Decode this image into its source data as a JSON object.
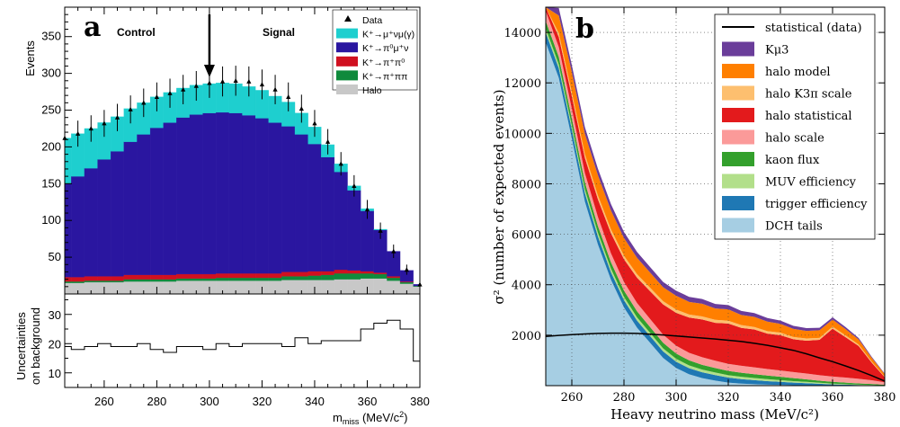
{
  "left": {
    "panel_label": "a",
    "top_ylabel": "Events",
    "bottom_ylabel_line1": "Uncertainties",
    "bottom_ylabel_line2": "on background",
    "xlabel": "m",
    "xlabel_sub": "miss",
    "xlabel_unit": " (MeV/c",
    "xlabel_sup": "2",
    "xlabel_close": ")",
    "region_control": "Control",
    "region_signal": "Signal",
    "arrow_at": 300,
    "legend": [
      {
        "id": "data",
        "label": "Data",
        "color": "#000000"
      },
      {
        "id": "kmu2",
        "label": "K⁺→μ⁺νμ(γ)",
        "color": "#1ecfcf"
      },
      {
        "id": "kmu3",
        "label": "K⁺→π⁰μ⁺ν",
        "color": "#2a16a0"
      },
      {
        "id": "k2pi",
        "label": "K⁺→π⁺π⁰",
        "color": "#d01020"
      },
      {
        "id": "k3pi",
        "label": "K⁺→π⁺ππ",
        "color": "#0f8a3c"
      },
      {
        "id": "halo",
        "label": "Halo",
        "color": "#c8c8c8"
      }
    ]
  },
  "right": {
    "panel_label": "b",
    "xlabel": "Heavy neutrino mass (MeV/c²)",
    "ylabel": "σ² (number of expected events)",
    "legend": [
      {
        "id": "stat",
        "label": "statistical (data)",
        "color": "#000000",
        "kind": "line"
      },
      {
        "id": "kmu3",
        "label": "Kμ3",
        "color": "#6a3d9a"
      },
      {
        "id": "halo_model",
        "label": "halo model",
        "color": "#ff7f00"
      },
      {
        "id": "halo_k3pi",
        "label": "halo K3π scale",
        "color": "#fdbf6f"
      },
      {
        "id": "halo_stat",
        "label": "halo statistical",
        "color": "#e31a1c"
      },
      {
        "id": "halo_scale",
        "label": "halo scale",
        "color": "#fb9a99"
      },
      {
        "id": "kaon_flux",
        "label": "kaon flux",
        "color": "#33a02c"
      },
      {
        "id": "muv_eff",
        "label": "MUV efficiency",
        "color": "#b2df8a"
      },
      {
        "id": "trig_eff",
        "label": "trigger efficiency",
        "color": "#1f78b4"
      },
      {
        "id": "dch",
        "label": "DCH tails",
        "color": "#a6cee3"
      }
    ]
  },
  "chart_data": [
    {
      "type": "bar",
      "title": "",
      "xlabel": "m_miss (MeV/c²)",
      "ylabel": "Events",
      "xlim": [
        245,
        380
      ],
      "ylim": [
        0,
        390
      ],
      "x_ticks": [
        260,
        280,
        300,
        320,
        340,
        360,
        380
      ],
      "y_ticks": [
        50,
        100,
        150,
        200,
        250,
        300,
        350
      ],
      "x": [
        245,
        250,
        255,
        260,
        265,
        270,
        275,
        280,
        285,
        290,
        295,
        300,
        305,
        310,
        315,
        320,
        325,
        330,
        335,
        340,
        345,
        350,
        355,
        360,
        365,
        370,
        375,
        380
      ],
      "series": [
        {
          "name": "Halo",
          "values": [
            15,
            15,
            16,
            16,
            16,
            17,
            17,
            17,
            17,
            18,
            18,
            18,
            18,
            18,
            18,
            18,
            18,
            19,
            19,
            19,
            19,
            20,
            20,
            21,
            21,
            18,
            14,
            10
          ]
        },
        {
          "name": "K⁺→π⁺ππ",
          "values": [
            2,
            2,
            2,
            2,
            2,
            3,
            3,
            3,
            3,
            3,
            3,
            3,
            4,
            4,
            4,
            4,
            4,
            5,
            5,
            6,
            7,
            8,
            8,
            7,
            6,
            4,
            2,
            1
          ]
        },
        {
          "name": "K⁺→π⁺π⁰",
          "values": [
            6,
            6,
            6,
            6,
            6,
            6,
            6,
            6,
            6,
            6,
            6,
            6,
            6,
            6,
            6,
            6,
            6,
            6,
            6,
            6,
            5,
            5,
            4,
            3,
            2,
            2,
            1,
            0
          ]
        },
        {
          "name": "K⁺→π⁰μ⁺ν",
          "values": [
            127,
            137,
            147,
            159,
            170,
            181,
            191,
            200,
            207,
            213,
            217,
            219,
            219,
            218,
            215,
            211,
            205,
            198,
            187,
            173,
            155,
            133,
            109,
            82,
            58,
            34,
            15,
            2
          ]
        },
        {
          "name": "K⁺→μ⁺νμ(γ)",
          "values": [
            62,
            58,
            54,
            50,
            47,
            45,
            43,
            42,
            41,
            40,
            40,
            40,
            40,
            40,
            39,
            38,
            36,
            33,
            29,
            23,
            17,
            11,
            6,
            3,
            1,
            0,
            0,
            0
          ]
        },
        {
          "name": "Data",
          "values": [
            212,
            218,
            225,
            232,
            240,
            251,
            260,
            268,
            273,
            278,
            283,
            287,
            289,
            290,
            289,
            285,
            278,
            268,
            252,
            232,
            207,
            177,
            147,
            115,
            86,
            58,
            33,
            13
          ]
        }
      ]
    },
    {
      "type": "line",
      "title": "",
      "xlabel": "m_miss (MeV/c²)",
      "ylabel": "Uncertainties on background",
      "xlim": [
        245,
        380
      ],
      "ylim": [
        5,
        37
      ],
      "y_ticks": [
        10,
        20,
        30
      ],
      "x": [
        245,
        250,
        255,
        260,
        265,
        270,
        275,
        280,
        285,
        290,
        295,
        300,
        305,
        310,
        315,
        320,
        325,
        330,
        335,
        340,
        345,
        350,
        355,
        360,
        365,
        370,
        375,
        380
      ],
      "series": [
        {
          "name": "",
          "values": [
            19,
            18,
            19,
            20,
            19,
            19,
            20,
            18,
            17,
            19,
            19,
            18,
            20,
            19,
            20,
            20,
            20,
            19,
            22,
            20,
            21,
            21,
            21,
            25,
            27,
            28,
            25,
            14
          ]
        }
      ]
    },
    {
      "type": "area",
      "title": "",
      "xlabel": "Heavy neutrino mass (MeV/c²)",
      "ylabel": "σ² (number of expected events)",
      "xlim": [
        250,
        380
      ],
      "ylim": [
        0,
        15000
      ],
      "x_ticks": [
        260,
        280,
        300,
        320,
        340,
        360,
        380
      ],
      "y_ticks": [
        2000,
        4000,
        6000,
        8000,
        10000,
        12000,
        14000
      ],
      "x": [
        250,
        255,
        260,
        265,
        270,
        275,
        280,
        285,
        290,
        295,
        300,
        305,
        310,
        315,
        320,
        325,
        330,
        335,
        340,
        345,
        350,
        355,
        360,
        365,
        370,
        375,
        380
      ],
      "series": [
        {
          "name": "DCH tails",
          "values": [
            13600,
            12200,
            9800,
            7300,
            5600,
            4200,
            3100,
            2300,
            1700,
            1100,
            700,
            450,
            300,
            200,
            120,
            80,
            60,
            40,
            30,
            20,
            20,
            15,
            10,
            10,
            5,
            5,
            0
          ]
        },
        {
          "name": "trigger efficiency",
          "values": [
            400,
            380,
            360,
            340,
            320,
            300,
            290,
            280,
            270,
            260,
            250,
            240,
            230,
            220,
            200,
            180,
            160,
            140,
            120,
            100,
            80,
            60,
            40,
            30,
            20,
            10,
            0
          ]
        },
        {
          "name": "MUV efficiency",
          "values": [
            150,
            150,
            145,
            140,
            140,
            135,
            130,
            130,
            125,
            120,
            115,
            110,
            105,
            100,
            95,
            90,
            85,
            80,
            70,
            60,
            50,
            40,
            30,
            20,
            15,
            10,
            5
          ]
        },
        {
          "name": "kaon flux",
          "values": [
            300,
            300,
            290,
            280,
            270,
            260,
            250,
            240,
            230,
            220,
            210,
            200,
            190,
            180,
            170,
            160,
            150,
            140,
            130,
            120,
            100,
            80,
            70,
            60,
            50,
            40,
            30
          ]
        },
        {
          "name": "halo scale",
          "values": [
            400,
            390,
            380,
            370,
            360,
            350,
            340,
            330,
            320,
            320,
            310,
            300,
            300,
            290,
            280,
            280,
            270,
            260,
            250,
            240,
            230,
            220,
            210,
            200,
            180,
            150,
            100
          ]
        },
        {
          "name": "halo statistical",
          "values": [
            300,
            400,
            500,
            600,
            700,
            800,
            900,
            1000,
            1100,
            1200,
            1300,
            1400,
            1500,
            1500,
            1600,
            1500,
            1500,
            1400,
            1400,
            1300,
            1300,
            1400,
            1900,
            1600,
            1300,
            700,
            200
          ]
        },
        {
          "name": "halo K3π scale",
          "values": [
            150,
            150,
            150,
            150,
            150,
            150,
            140,
            140,
            140,
            130,
            130,
            120,
            120,
            120,
            110,
            110,
            100,
            100,
            100,
            90,
            90,
            80,
            80,
            70,
            60,
            40,
            20
          ]
        },
        {
          "name": "halo model",
          "values": [
            600,
            700,
            800,
            800,
            800,
            750,
            700,
            650,
            600,
            550,
            550,
            500,
            500,
            450,
            450,
            400,
            400,
            380,
            350,
            320,
            300,
            300,
            280,
            250,
            200,
            150,
            100
          ]
        },
        {
          "name": "Kμ3",
          "values": [
            300,
            300,
            280,
            270,
            260,
            250,
            240,
            230,
            220,
            210,
            200,
            200,
            190,
            180,
            170,
            160,
            150,
            140,
            130,
            120,
            110,
            100,
            90,
            80,
            60,
            40,
            20
          ]
        },
        {
          "name": "statistical (data)",
          "values": [
            1950,
            1990,
            2020,
            2050,
            2070,
            2080,
            2080,
            2070,
            2040,
            2010,
            1970,
            1930,
            1890,
            1850,
            1800,
            1750,
            1680,
            1600,
            1500,
            1400,
            1260,
            1100,
            950,
            780,
            600,
            400,
            180
          ]
        }
      ]
    }
  ]
}
